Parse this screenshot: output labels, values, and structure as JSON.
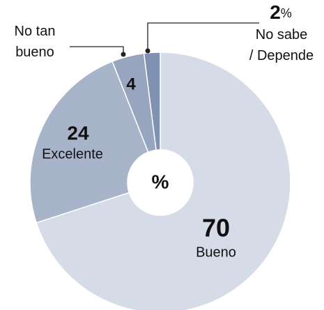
{
  "chart_data": {
    "type": "donut",
    "categories": [
      "Bueno",
      "Excelente",
      "No tan bueno",
      "No sabe / Depende"
    ],
    "values": [
      70,
      24,
      4,
      2
    ],
    "value_labels": [
      "70",
      "24",
      "4",
      "2%"
    ],
    "colors": [
      "#d6dce7",
      "#a8b4ca",
      "#97a5bf",
      "#8191b1"
    ],
    "center_label": "%"
  }
}
